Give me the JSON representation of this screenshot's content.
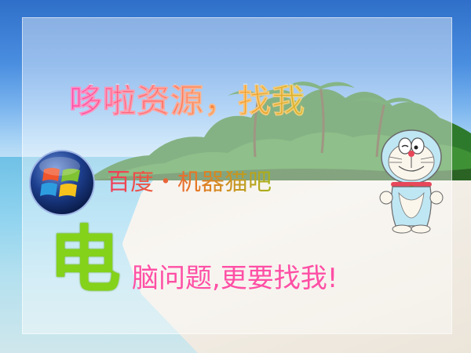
{
  "headline": "哆啦资源，找我",
  "tieba_name": "百度・机器猫吧",
  "big_char": "电",
  "tagline": "脑问题,更要找我!",
  "colors": {
    "pink": "#ff4fa5",
    "green": "#85d21a",
    "orange": "#e57a25",
    "sky": "#4a8ee0"
  },
  "icons": [
    "windows-logo-icon",
    "doraemon-icon",
    "palm-trees-icon"
  ]
}
